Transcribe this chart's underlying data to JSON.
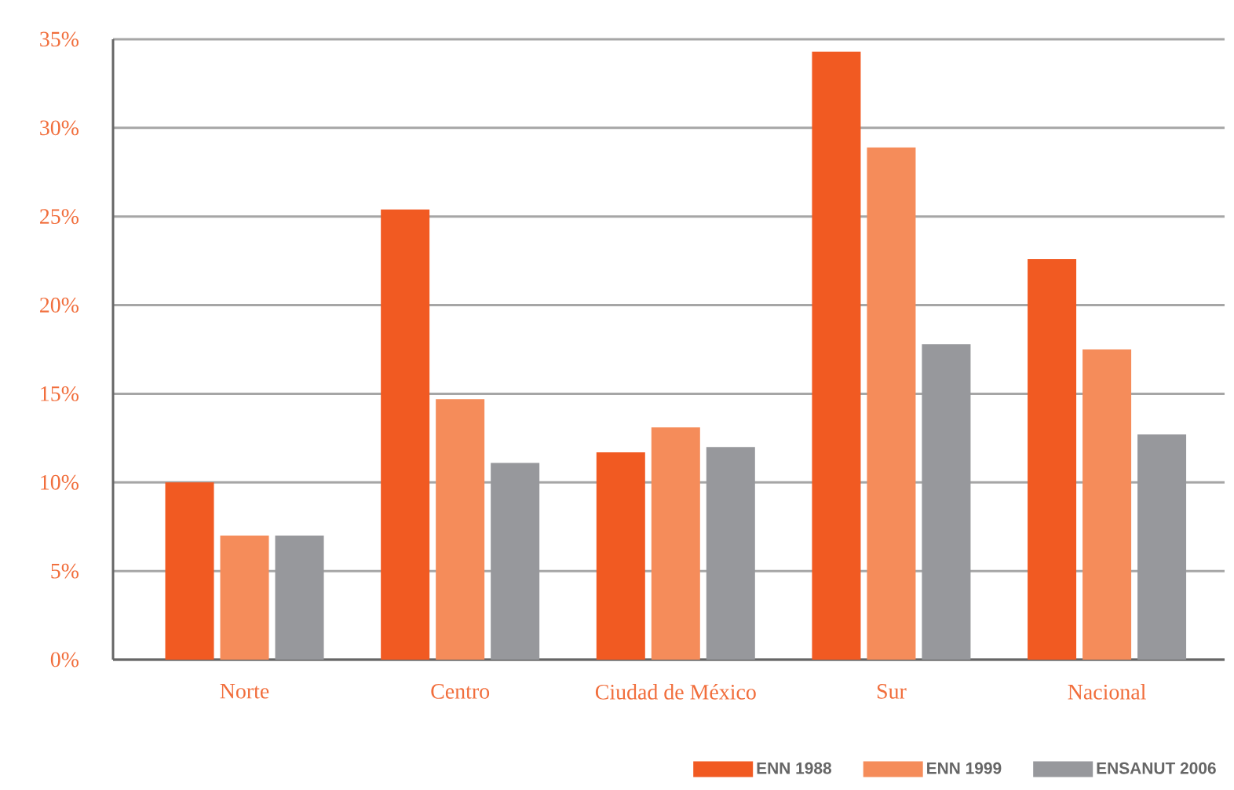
{
  "chart_data": {
    "type": "bar",
    "categories": [
      "Norte",
      "Centro",
      "Ciudad de México",
      "Sur",
      "Nacional"
    ],
    "series": [
      {
        "name": "ENN 1988",
        "color": "#f15a22",
        "values": [
          10.0,
          25.4,
          11.7,
          34.3,
          22.6
        ]
      },
      {
        "name": "ENN 1999",
        "color": "#f58c5a",
        "values": [
          7.0,
          14.7,
          13.1,
          28.9,
          17.5
        ]
      },
      {
        "name": "ENSANUT 2006",
        "color": "#97989c",
        "values": [
          7.0,
          11.1,
          12.0,
          17.8,
          12.7
        ]
      }
    ],
    "ylim": [
      0,
      35
    ],
    "yticks": [
      {
        "value": 0,
        "label": "0%"
      },
      {
        "value": 5,
        "label": "5%"
      },
      {
        "value": 10,
        "label": "10%"
      },
      {
        "value": 15,
        "label": "15%"
      },
      {
        "value": 20,
        "label": "20%"
      },
      {
        "value": 25,
        "label": "25%"
      },
      {
        "value": 30,
        "label": "30%"
      },
      {
        "value": 35,
        "label": "35%"
      }
    ],
    "grid": "y",
    "legend": "bottom right"
  }
}
